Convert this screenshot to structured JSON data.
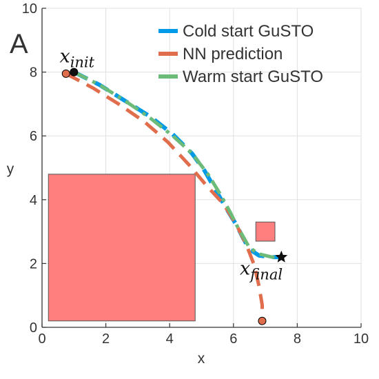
{
  "chart_data": {
    "type": "line",
    "panel_label": "A",
    "xlabel": "x",
    "ylabel": "y",
    "xlim": [
      0,
      10
    ],
    "ylim": [
      0,
      10
    ],
    "xticks": [
      0,
      2,
      4,
      6,
      8,
      10
    ],
    "yticks": [
      0,
      2,
      4,
      6,
      8,
      10
    ],
    "grid": true,
    "legend_position": "top-right",
    "colors": {
      "cold": "#009ae6",
      "nn": "#e06d4c",
      "warm": "#6cbb78",
      "obstacle_fill": "#ff7f7f",
      "obstacle_edge": "#555555",
      "grid": "#e0e0e0",
      "axis": "#333333"
    },
    "series": [
      {
        "name": "Cold start GuSTO",
        "key": "cold",
        "style": "dashed",
        "x": [
          1.0,
          1.8,
          2.6,
          3.4,
          4.1,
          4.7,
          5.1,
          5.5,
          5.85,
          6.1,
          6.3,
          6.5,
          6.8,
          7.2,
          7.5
        ],
        "y": [
          8.0,
          7.6,
          7.1,
          6.6,
          6.05,
          5.45,
          4.9,
          4.2,
          3.6,
          3.2,
          2.8,
          2.45,
          2.25,
          2.2,
          2.2
        ]
      },
      {
        "name": "NN prediction",
        "key": "nn",
        "style": "dashed",
        "x": [
          0.75,
          1.6,
          2.4,
          3.2,
          3.95,
          4.6,
          5.15,
          5.7,
          6.1,
          6.4,
          6.65,
          6.8,
          6.9,
          6.9
        ],
        "y": [
          7.95,
          7.5,
          7.0,
          6.45,
          5.8,
          5.1,
          4.45,
          3.85,
          3.2,
          2.6,
          1.95,
          1.3,
          0.7,
          0.2
        ]
      },
      {
        "name": "Warm start GuSTO",
        "key": "warm",
        "style": "dashdot",
        "x": [
          1.0,
          1.8,
          2.6,
          3.4,
          4.1,
          4.7,
          5.2,
          5.6,
          5.9,
          6.1,
          6.3,
          6.5,
          6.8,
          7.2,
          7.5
        ],
        "y": [
          8.0,
          7.6,
          7.1,
          6.55,
          6.0,
          5.45,
          4.8,
          4.15,
          3.6,
          3.2,
          2.85,
          2.5,
          2.3,
          2.2,
          2.2
        ]
      }
    ],
    "markers": [
      {
        "kind": "circle",
        "color": "#e06d4c",
        "x": 0.75,
        "y": 7.95
      },
      {
        "kind": "circle",
        "color": "#111111",
        "x": 1.0,
        "y": 8.0
      },
      {
        "kind": "circle",
        "color": "#e06d4c",
        "x": 6.9,
        "y": 0.2
      },
      {
        "kind": "star",
        "color": "#111111",
        "x": 7.5,
        "y": 2.2
      }
    ],
    "obstacles": [
      {
        "x0": 0.2,
        "y0": 0.2,
        "x1": 4.8,
        "y1": 4.8
      },
      {
        "x0": 6.7,
        "y0": 2.7,
        "x1": 7.3,
        "y1": 3.3
      }
    ],
    "annotations": [
      {
        "id": "x-init",
        "base": "x",
        "sub": "init",
        "x": 0.55,
        "y": 8.3
      },
      {
        "id": "x-final",
        "base": "x",
        "sub": "final",
        "x": 6.2,
        "y": 1.65
      }
    ]
  }
}
